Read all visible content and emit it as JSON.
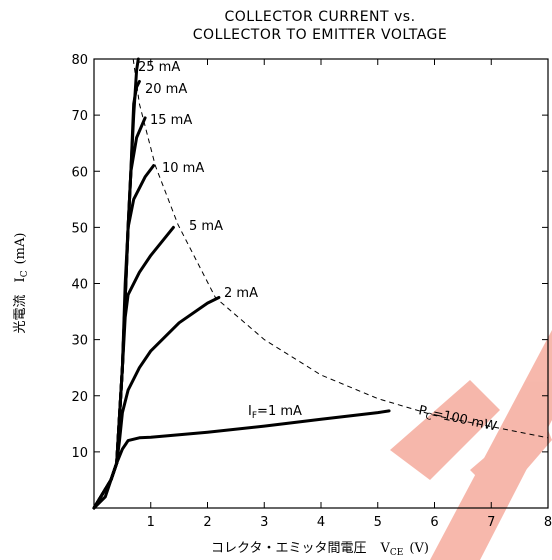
{
  "chart_data": {
    "type": "line",
    "title": [
      "COLLECTOR CURRENT vs.",
      "COLLECTOR TO EMITTER VOLTAGE"
    ],
    "x_label": {
      "text": "コレクタ・エミッタ間電圧",
      "symbol": "V",
      "subscript": "CE",
      "unit": "(V)"
    },
    "y_label": {
      "text": "光電流",
      "symbol": "I",
      "subscript": "C",
      "unit": "(mA)"
    },
    "xlim": [
      0,
      8
    ],
    "xticks": [
      1,
      2,
      3,
      4,
      5,
      6,
      7,
      8
    ],
    "ylim": [
      0,
      80
    ],
    "yticks": [
      10,
      20,
      30,
      40,
      50,
      60,
      70,
      80
    ],
    "if_symbol": "I",
    "if_subscript": "F",
    "if_equals": "=",
    "color": "#000000",
    "series": [
      {
        "name": "1 mA",
        "x": [
          0,
          0.2,
          0.3,
          0.4,
          0.5,
          0.6,
          0.8,
          1,
          2,
          3,
          4,
          5,
          5.2
        ],
        "y": [
          0,
          2,
          5,
          8,
          10.5,
          12,
          12.5,
          12.6,
          13.5,
          14.6,
          15.8,
          17,
          17.3
        ]
      },
      {
        "name": "2 mA",
        "x": [
          0,
          0.3,
          0.4,
          0.45,
          0.5,
          0.6,
          0.8,
          1,
          1.5,
          2,
          2.2
        ],
        "y": [
          0,
          5,
          8,
          12,
          17,
          21,
          25,
          28,
          33,
          36.5,
          37.5
        ]
      },
      {
        "name": "5 mA",
        "x": [
          0,
          0.3,
          0.4,
          0.5,
          0.55,
          0.6,
          0.8,
          1,
          1.4
        ],
        "y": [
          0,
          5,
          8,
          25,
          34,
          38,
          42,
          45,
          50
        ]
      },
      {
        "name": "10 mA",
        "x": [
          0,
          0.3,
          0.4,
          0.5,
          0.55,
          0.6,
          0.7,
          0.9,
          1.05
        ],
        "y": [
          0,
          5,
          8,
          25,
          40,
          50,
          55,
          59,
          61
        ]
      },
      {
        "name": "15 mA",
        "x": [
          0,
          0.3,
          0.4,
          0.5,
          0.6,
          0.65,
          0.75,
          0.9
        ],
        "y": [
          0,
          5,
          8,
          25,
          50,
          60,
          66,
          69.5
        ]
      },
      {
        "name": "20 mA",
        "x": [
          0,
          0.3,
          0.4,
          0.5,
          0.6,
          0.65,
          0.7,
          0.75,
          0.8
        ],
        "y": [
          0,
          5,
          8,
          25,
          50,
          60,
          72,
          75,
          76
        ]
      },
      {
        "name": "25 mA",
        "x": [
          0,
          0.3,
          0.4,
          0.5,
          0.6,
          0.7,
          0.75,
          0.78
        ],
        "y": [
          0,
          5,
          8,
          25,
          50,
          70,
          78,
          80
        ]
      }
    ],
    "power_limit": {
      "symbol": "P",
      "subscript": "C",
      "text": "=100 mW",
      "x": [
        0.69,
        0.8,
        1.08,
        1.48,
        2.14,
        3,
        4,
        5,
        6,
        7,
        8
      ],
      "y": [
        80,
        72,
        61,
        50.5,
        37.5,
        30,
        23.7,
        19.5,
        16.5,
        14.5,
        12.5
      ]
    }
  }
}
